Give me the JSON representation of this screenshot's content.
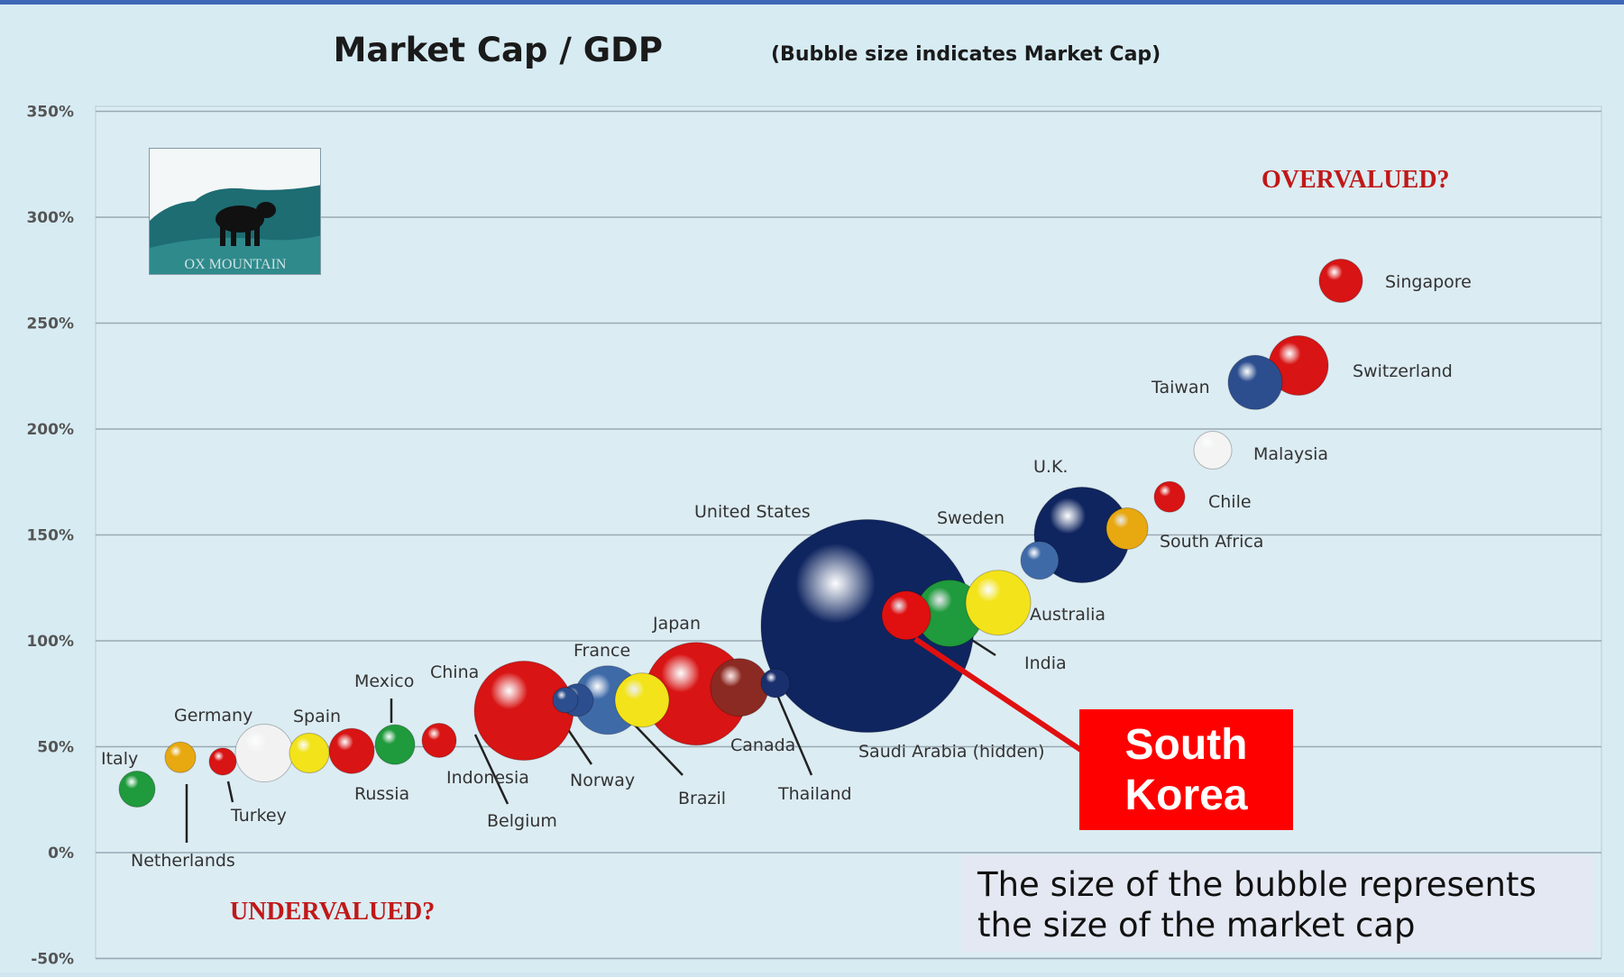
{
  "chart_data": {
    "type": "scatter",
    "title": "Market Cap / GDP",
    "subtitle": "(Bubble size indicates Market Cap)",
    "ylim": [
      -50,
      350
    ],
    "y_ticks": [
      "350%",
      "300%",
      "250%",
      "200%",
      "150%",
      "100%",
      "50%",
      "0%",
      "-50%"
    ],
    "grid": true,
    "annotations": {
      "overvalued": "OVERVALUED?",
      "undervalued": "UNDERVALUED?"
    },
    "points": [
      {
        "name": "Italy",
        "y": 30,
        "color": "#1f9a3c"
      },
      {
        "name": "Netherlands",
        "y": 45,
        "color": "#e8a810"
      },
      {
        "name": "Turkey",
        "y": 43,
        "color": "#d81414"
      },
      {
        "name": "Germany",
        "y": 47,
        "color": "#f2f2f2"
      },
      {
        "name": "Spain",
        "y": 47,
        "color": "#f3e31a"
      },
      {
        "name": "Russia",
        "y": 48,
        "color": "#d81414"
      },
      {
        "name": "Mexico",
        "y": 51,
        "color": "#1f9a3c"
      },
      {
        "name": "Belgium",
        "y": 53,
        "color": "#d81414"
      },
      {
        "name": "China",
        "y": 67,
        "color": "#d81414"
      },
      {
        "name": "Indonesia",
        "y": 72,
        "color": "#2c4e8e"
      },
      {
        "name": "Norway",
        "y": 72,
        "color": "#2c4e8e"
      },
      {
        "name": "France",
        "y": 72,
        "color": "#3f6aa8"
      },
      {
        "name": "Brazil",
        "y": 72,
        "color": "#f3e31a"
      },
      {
        "name": "Japan",
        "y": 75,
        "color": "#d81414"
      },
      {
        "name": "Canada",
        "y": 78,
        "color": "#8b2a22"
      },
      {
        "name": "Thailand",
        "y": 80,
        "color": "#1a2f6e"
      },
      {
        "name": "United States",
        "y": 107,
        "color": "#0f2560"
      },
      {
        "name": "Saudi Arabia (hidden)",
        "y": 107,
        "color": "#0f2560"
      },
      {
        "name": "South Korea",
        "y": 112,
        "color": "#e01010"
      },
      {
        "name": "India",
        "y": 113,
        "color": "#1f9a3c"
      },
      {
        "name": "Australia",
        "y": 118,
        "color": "#f3e31a"
      },
      {
        "name": "Sweden",
        "y": 138,
        "color": "#3f6aa8"
      },
      {
        "name": "U.K.",
        "y": 150,
        "color": "#0f2560"
      },
      {
        "name": "South Africa",
        "y": 153,
        "color": "#e8a810"
      },
      {
        "name": "Chile",
        "y": 168,
        "color": "#d81414"
      },
      {
        "name": "Malaysia",
        "y": 190,
        "color": "#f4f4f4"
      },
      {
        "name": "Taiwan",
        "y": 222,
        "color": "#2c4e8e"
      },
      {
        "name": "Switzerland",
        "y": 230,
        "color": "#d81414"
      },
      {
        "name": "Singapore",
        "y": 270,
        "color": "#d81414"
      }
    ]
  },
  "callout": {
    "line1": "South",
    "line2": "Korea"
  },
  "note": "The size of the bubble represents the size of the market cap",
  "logo_text": "OX MOUNTAIN",
  "colors": {
    "border": "#3f66b8",
    "plot_bg": "#dcecf3",
    "grid": "#9aa9b3",
    "annotation": "#c01818"
  }
}
